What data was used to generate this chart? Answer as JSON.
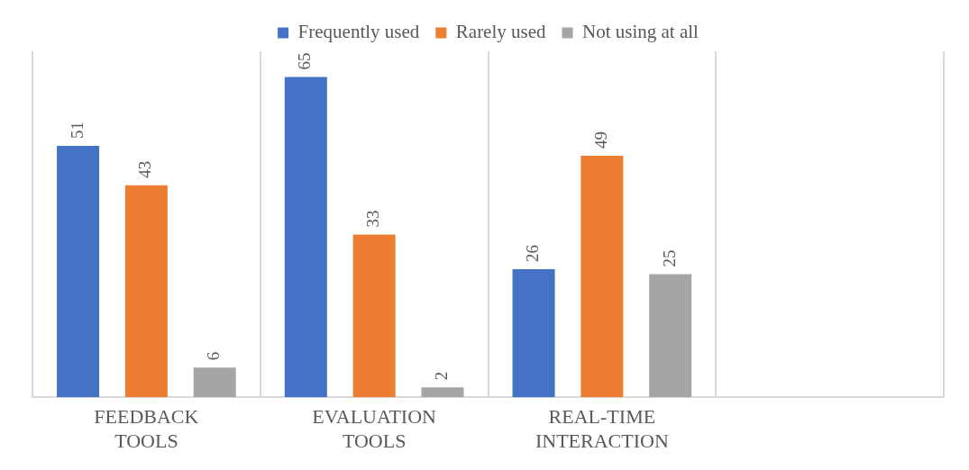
{
  "chart_data": {
    "type": "bar",
    "categories": [
      "FEEDBACK TOOLS",
      "EVALUATION TOOLS",
      "REAL-TIME INTERACTION",
      null
    ],
    "series": [
      {
        "name": "Frequently used",
        "color": "#4472c4",
        "values": [
          51,
          65,
          26,
          null
        ]
      },
      {
        "name": "Rarely used",
        "color": "#ed7d31",
        "values": [
          43,
          33,
          49,
          null
        ]
      },
      {
        "name": "Not using at all",
        "color": "#a5a5a5",
        "values": [
          6,
          2,
          25,
          null
        ]
      }
    ],
    "data_labels": true,
    "grid": "x",
    "legend": "top"
  }
}
